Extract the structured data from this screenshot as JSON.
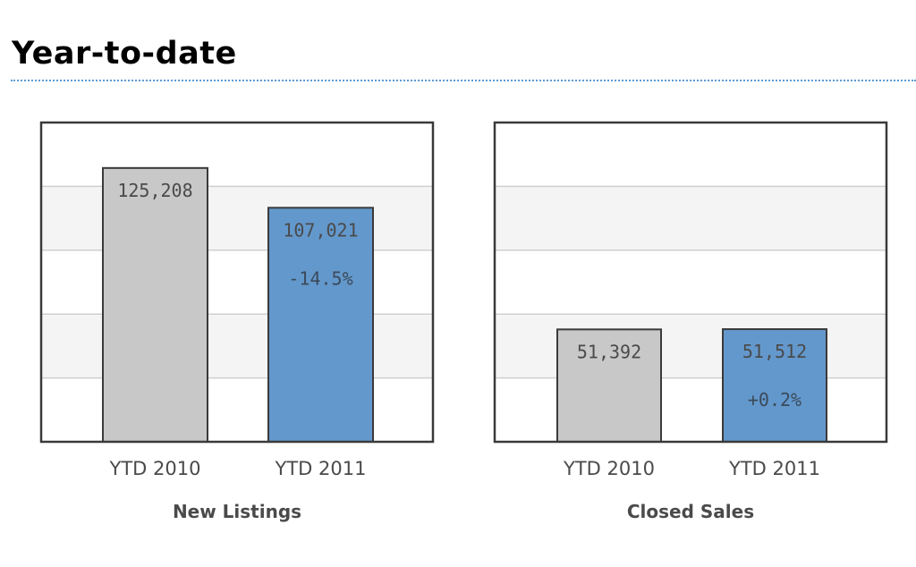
{
  "page": {
    "title": "Year-to-date"
  },
  "chart_data": [
    {
      "type": "bar",
      "title": "New Listings",
      "categories": [
        "YTD 2010",
        "YTD 2011"
      ],
      "values": [
        125208,
        107021
      ],
      "value_labels": [
        "125,208",
        "107,021"
      ],
      "change_label": "-14.5%",
      "ylim": [
        0,
        146000
      ],
      "grid": true,
      "colors": [
        "#c8c8c8",
        "#6398cc"
      ]
    },
    {
      "type": "bar",
      "title": "Closed Sales",
      "categories": [
        "YTD 2010",
        "YTD 2011"
      ],
      "values": [
        51392,
        51512
      ],
      "value_labels": [
        "51,392",
        "51,512"
      ],
      "change_label": "+0.2%",
      "ylim": [
        0,
        146000
      ],
      "grid": true,
      "colors": [
        "#c8c8c8",
        "#6398cc"
      ]
    }
  ]
}
